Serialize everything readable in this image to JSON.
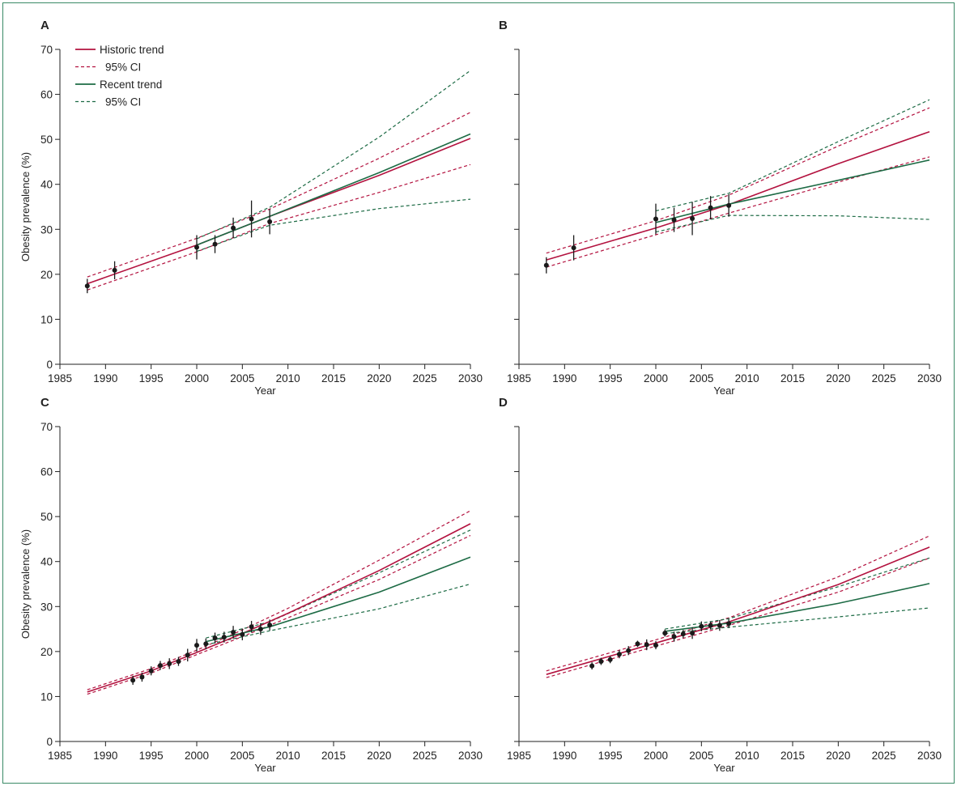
{
  "colors": {
    "historic": "#b3123f",
    "recent": "#1d6b45",
    "point": "#1a1a1a",
    "axis": "#222222",
    "frame": "#3a8a66"
  },
  "legend": {
    "placement": "top-left of panel A",
    "items": [
      {
        "label": "Historic trend",
        "style": "solid",
        "color": "#b3123f"
      },
      {
        "label": "95% CI",
        "style": "dashed",
        "color": "#b3123f"
      },
      {
        "label": "Recent trend",
        "style": "solid",
        "color": "#1d6b45"
      },
      {
        "label": "95% CI",
        "style": "dashed",
        "color": "#1d6b45"
      }
    ]
  },
  "chart_data": [
    {
      "panel": "A",
      "type": "line",
      "xlabel": "Year",
      "ylabel": "Obesity prevalence (%)",
      "xlim": [
        1985,
        2030
      ],
      "ylim": [
        0,
        70
      ],
      "xticks": [
        1985,
        1990,
        1995,
        2000,
        2005,
        2010,
        2015,
        2020,
        2025,
        2030
      ],
      "yticks": [
        0,
        10,
        20,
        30,
        40,
        50,
        60,
        70
      ],
      "show_x_labels": true,
      "show_y_labels": true,
      "observed": [
        {
          "x": 1988,
          "y": 17.4,
          "lo": 15.8,
          "hi": 19.0
        },
        {
          "x": 1991,
          "y": 20.9,
          "lo": 18.9,
          "hi": 22.9
        },
        {
          "x": 2000,
          "y": 26.0,
          "lo": 23.3,
          "hi": 28.7
        },
        {
          "x": 2002,
          "y": 26.7,
          "lo": 24.7,
          "hi": 28.7
        },
        {
          "x": 2004,
          "y": 30.3,
          "lo": 28.0,
          "hi": 32.6
        },
        {
          "x": 2006,
          "y": 32.3,
          "lo": 28.2,
          "hi": 36.4
        },
        {
          "x": 2008,
          "y": 31.7,
          "lo": 28.9,
          "hi": 34.5
        }
      ],
      "series": [
        {
          "name": "Historic trend",
          "style": "solid",
          "color": "historic",
          "x": [
            1988,
            2000,
            2008,
            2020,
            2030
          ],
          "y": [
            17.9,
            26.5,
            32.9,
            42.0,
            50.2
          ]
        },
        {
          "name": "95% CI",
          "style": "dashed",
          "color": "historic",
          "x": [
            1988,
            2000,
            2008,
            2020,
            2030
          ],
          "y": [
            19.4,
            28.0,
            34.5,
            45.8,
            56.0
          ]
        },
        {
          "name": "95% CI",
          "style": "dashed",
          "color": "historic",
          "x": [
            1988,
            2000,
            2008,
            2020,
            2030
          ],
          "y": [
            16.5,
            25.0,
            31.3,
            38.2,
            44.4
          ]
        },
        {
          "name": "Recent trend",
          "style": "solid",
          "color": "recent",
          "x": [
            2000,
            2008,
            2020,
            2030
          ],
          "y": [
            26.5,
            32.9,
            42.6,
            51.2
          ]
        },
        {
          "name": "95% CI",
          "style": "dashed",
          "color": "recent",
          "x": [
            2000,
            2008,
            2020,
            2030
          ],
          "y": [
            27.9,
            34.9,
            50.5,
            65.3
          ]
        },
        {
          "name": "95% CI",
          "style": "dashed",
          "color": "recent",
          "x": [
            2000,
            2008,
            2020,
            2030
          ],
          "y": [
            25.1,
            30.9,
            34.6,
            36.7
          ]
        }
      ]
    },
    {
      "panel": "B",
      "type": "line",
      "xlabel": "Year",
      "ylabel": "",
      "xlim": [
        1985,
        2030
      ],
      "ylim": [
        0,
        70
      ],
      "xticks": [
        1985,
        1990,
        1995,
        2000,
        2005,
        2010,
        2015,
        2020,
        2025,
        2030
      ],
      "yticks": [
        0,
        10,
        20,
        30,
        40,
        50,
        60,
        70
      ],
      "show_x_labels": true,
      "show_y_labels": false,
      "observed": [
        {
          "x": 1988,
          "y": 22.0,
          "lo": 20.2,
          "hi": 23.8
        },
        {
          "x": 1991,
          "y": 25.9,
          "lo": 23.1,
          "hi": 28.7
        },
        {
          "x": 2000,
          "y": 32.3,
          "lo": 28.9,
          "hi": 35.7
        },
        {
          "x": 2002,
          "y": 32.1,
          "lo": 29.4,
          "hi": 34.8
        },
        {
          "x": 2004,
          "y": 32.4,
          "lo": 28.7,
          "hi": 36.1
        },
        {
          "x": 2006,
          "y": 34.8,
          "lo": 32.2,
          "hi": 37.4
        },
        {
          "x": 2008,
          "y": 35.3,
          "lo": 32.8,
          "hi": 37.8
        }
      ],
      "series": [
        {
          "name": "Historic trend",
          "style": "solid",
          "color": "historic",
          "x": [
            1988,
            2000,
            2008,
            2020,
            2030
          ],
          "y": [
            23.2,
            30.3,
            35.5,
            44.6,
            51.7
          ]
        },
        {
          "name": "95% CI",
          "style": "dashed",
          "color": "historic",
          "x": [
            1988,
            2000,
            2008,
            2020,
            2030
          ],
          "y": [
            24.7,
            31.9,
            37.6,
            48.5,
            57.0
          ]
        },
        {
          "name": "95% CI",
          "style": "dashed",
          "color": "historic",
          "x": [
            1988,
            2000,
            2008,
            2020,
            2030
          ],
          "y": [
            21.6,
            28.8,
            33.6,
            40.5,
            46.1
          ]
        },
        {
          "name": "Recent trend",
          "style": "solid",
          "color": "recent",
          "x": [
            2000,
            2008,
            2020,
            2030
          ],
          "y": [
            31.5,
            35.6,
            40.9,
            45.4
          ]
        },
        {
          "name": "95% CI",
          "style": "dashed",
          "color": "recent",
          "x": [
            2000,
            2008,
            2020,
            2030
          ],
          "y": [
            34.1,
            38.0,
            49.5,
            58.8
          ]
        },
        {
          "name": "95% CI",
          "style": "dashed",
          "color": "recent",
          "x": [
            2000,
            2008,
            2020,
            2030
          ],
          "y": [
            29.4,
            33.1,
            33.0,
            32.2
          ]
        }
      ]
    },
    {
      "panel": "C",
      "type": "line",
      "xlabel": "Year",
      "ylabel": "Obesity prevalence (%)",
      "xlim": [
        1985,
        2030
      ],
      "ylim": [
        0,
        70
      ],
      "xticks": [
        1985,
        1990,
        1995,
        2000,
        2005,
        2010,
        2015,
        2020,
        2025,
        2030
      ],
      "yticks": [
        0,
        10,
        20,
        30,
        40,
        50,
        60,
        70
      ],
      "show_x_labels": true,
      "show_y_labels": true,
      "observed": [
        {
          "x": 1993,
          "y": 13.6,
          "lo": 12.6,
          "hi": 14.6
        },
        {
          "x": 1994,
          "y": 14.3,
          "lo": 13.3,
          "hi": 15.3
        },
        {
          "x": 1995,
          "y": 15.7,
          "lo": 14.7,
          "hi": 16.7
        },
        {
          "x": 1996,
          "y": 16.9,
          "lo": 15.9,
          "hi": 17.9
        },
        {
          "x": 1997,
          "y": 17.3,
          "lo": 16.1,
          "hi": 18.5
        },
        {
          "x": 1998,
          "y": 17.8,
          "lo": 16.8,
          "hi": 18.8
        },
        {
          "x": 1999,
          "y": 19.2,
          "lo": 17.8,
          "hi": 20.6
        },
        {
          "x": 2000,
          "y": 21.4,
          "lo": 20.0,
          "hi": 22.8
        },
        {
          "x": 2001,
          "y": 21.7,
          "lo": 20.5,
          "hi": 22.9
        },
        {
          "x": 2002,
          "y": 23.0,
          "lo": 21.8,
          "hi": 24.2
        },
        {
          "x": 2003,
          "y": 23.2,
          "lo": 22.0,
          "hi": 24.4
        },
        {
          "x": 2004,
          "y": 24.3,
          "lo": 22.9,
          "hi": 25.7
        },
        {
          "x": 2005,
          "y": 23.8,
          "lo": 22.5,
          "hi": 25.1
        },
        {
          "x": 2006,
          "y": 25.5,
          "lo": 24.2,
          "hi": 26.8
        },
        {
          "x": 2007,
          "y": 25.0,
          "lo": 23.7,
          "hi": 26.3
        },
        {
          "x": 2008,
          "y": 25.9,
          "lo": 24.7,
          "hi": 27.1
        }
      ],
      "series": [
        {
          "name": "Historic trend",
          "style": "solid",
          "color": "historic",
          "x": [
            1988,
            1995,
            2000,
            2005,
            2010,
            2020,
            2030
          ],
          "y": [
            11.0,
            15.7,
            19.8,
            24.0,
            28.5,
            38.0,
            48.4
          ]
        },
        {
          "name": "95% CI",
          "style": "dashed",
          "color": "historic",
          "x": [
            1988,
            1995,
            2000,
            2005,
            2010,
            2020,
            2030
          ],
          "y": [
            11.5,
            16.2,
            20.3,
            24.8,
            29.6,
            40.3,
            51.3
          ]
        },
        {
          "name": "95% CI",
          "style": "dashed",
          "color": "historic",
          "x": [
            1988,
            1995,
            2000,
            2005,
            2010,
            2020,
            2030
          ],
          "y": [
            10.5,
            15.2,
            19.3,
            23.3,
            27.5,
            36.0,
            45.8
          ]
        },
        {
          "name": "Recent trend",
          "style": "solid",
          "color": "recent",
          "x": [
            2001,
            2008,
            2020,
            2030
          ],
          "y": [
            22.2,
            25.5,
            33.2,
            41.0
          ]
        },
        {
          "name": "95% CI",
          "style": "dashed",
          "color": "recent",
          "x": [
            2001,
            2008,
            2020,
            2030
          ],
          "y": [
            23.0,
            26.6,
            37.5,
            47.0
          ]
        },
        {
          "name": "95% CI",
          "style": "dashed",
          "color": "recent",
          "x": [
            2001,
            2008,
            2020,
            2030
          ],
          "y": [
            21.5,
            24.6,
            29.5,
            35.0
          ]
        }
      ]
    },
    {
      "panel": "D",
      "type": "line",
      "xlabel": "Year",
      "ylabel": "",
      "xlim": [
        1985,
        2030
      ],
      "ylim": [
        0,
        70
      ],
      "xticks": [
        1985,
        1990,
        1995,
        2000,
        2005,
        2010,
        2015,
        2020,
        2025,
        2030
      ],
      "yticks": [
        0,
        10,
        20,
        30,
        40,
        50,
        60,
        70
      ],
      "show_x_labels": true,
      "show_y_labels": false,
      "observed": [
        {
          "x": 1993,
          "y": 16.8,
          "lo": 16.0,
          "hi": 17.6
        },
        {
          "x": 1994,
          "y": 17.8,
          "lo": 17.0,
          "hi": 18.6
        },
        {
          "x": 1995,
          "y": 18.2,
          "lo": 17.4,
          "hi": 19.0
        },
        {
          "x": 1996,
          "y": 19.4,
          "lo": 18.5,
          "hi": 20.3
        },
        {
          "x": 1997,
          "y": 20.2,
          "lo": 19.2,
          "hi": 21.2
        },
        {
          "x": 1998,
          "y": 21.7,
          "lo": 21.0,
          "hi": 22.4
        },
        {
          "x": 1999,
          "y": 21.5,
          "lo": 20.3,
          "hi": 22.7
        },
        {
          "x": 2000,
          "y": 21.4,
          "lo": 20.5,
          "hi": 22.3
        },
        {
          "x": 2001,
          "y": 24.1,
          "lo": 23.3,
          "hi": 24.9
        },
        {
          "x": 2002,
          "y": 23.3,
          "lo": 22.2,
          "hi": 24.4
        },
        {
          "x": 2003,
          "y": 23.9,
          "lo": 23.0,
          "hi": 24.8
        },
        {
          "x": 2004,
          "y": 24.1,
          "lo": 22.8,
          "hi": 25.4
        },
        {
          "x": 2005,
          "y": 25.6,
          "lo": 24.5,
          "hi": 26.7
        },
        {
          "x": 2006,
          "y": 25.8,
          "lo": 24.9,
          "hi": 26.7
        },
        {
          "x": 2007,
          "y": 25.8,
          "lo": 24.6,
          "hi": 27.0
        },
        {
          "x": 2008,
          "y": 26.2,
          "lo": 25.2,
          "hi": 27.2
        }
      ],
      "series": [
        {
          "name": "Historic trend",
          "style": "solid",
          "color": "historic",
          "x": [
            1988,
            2000,
            2008,
            2020,
            2030
          ],
          "y": [
            14.9,
            21.9,
            26.6,
            34.9,
            43.2
          ]
        },
        {
          "name": "95% CI",
          "style": "dashed",
          "color": "historic",
          "x": [
            1988,
            2000,
            2008,
            2020,
            2030
          ],
          "y": [
            15.7,
            22.6,
            27.5,
            36.6,
            45.7
          ]
        },
        {
          "name": "95% CI",
          "style": "dashed",
          "color": "historic",
          "x": [
            1988,
            2000,
            2008,
            2020,
            2030
          ],
          "y": [
            14.2,
            21.2,
            25.8,
            33.2,
            40.8
          ]
        },
        {
          "name": "Recent trend",
          "style": "solid",
          "color": "recent",
          "x": [
            2001,
            2008,
            2020,
            2030
          ],
          "y": [
            24.5,
            26.3,
            30.7,
            35.1
          ]
        },
        {
          "name": "95% CI",
          "style": "dashed",
          "color": "recent",
          "x": [
            2001,
            2008,
            2020,
            2030
          ],
          "y": [
            25.0,
            27.3,
            34.4,
            40.8
          ]
        },
        {
          "name": "95% CI",
          "style": "dashed",
          "color": "recent",
          "x": [
            2001,
            2008,
            2020,
            2030
          ],
          "y": [
            24.0,
            25.4,
            27.7,
            29.7
          ]
        }
      ]
    }
  ]
}
